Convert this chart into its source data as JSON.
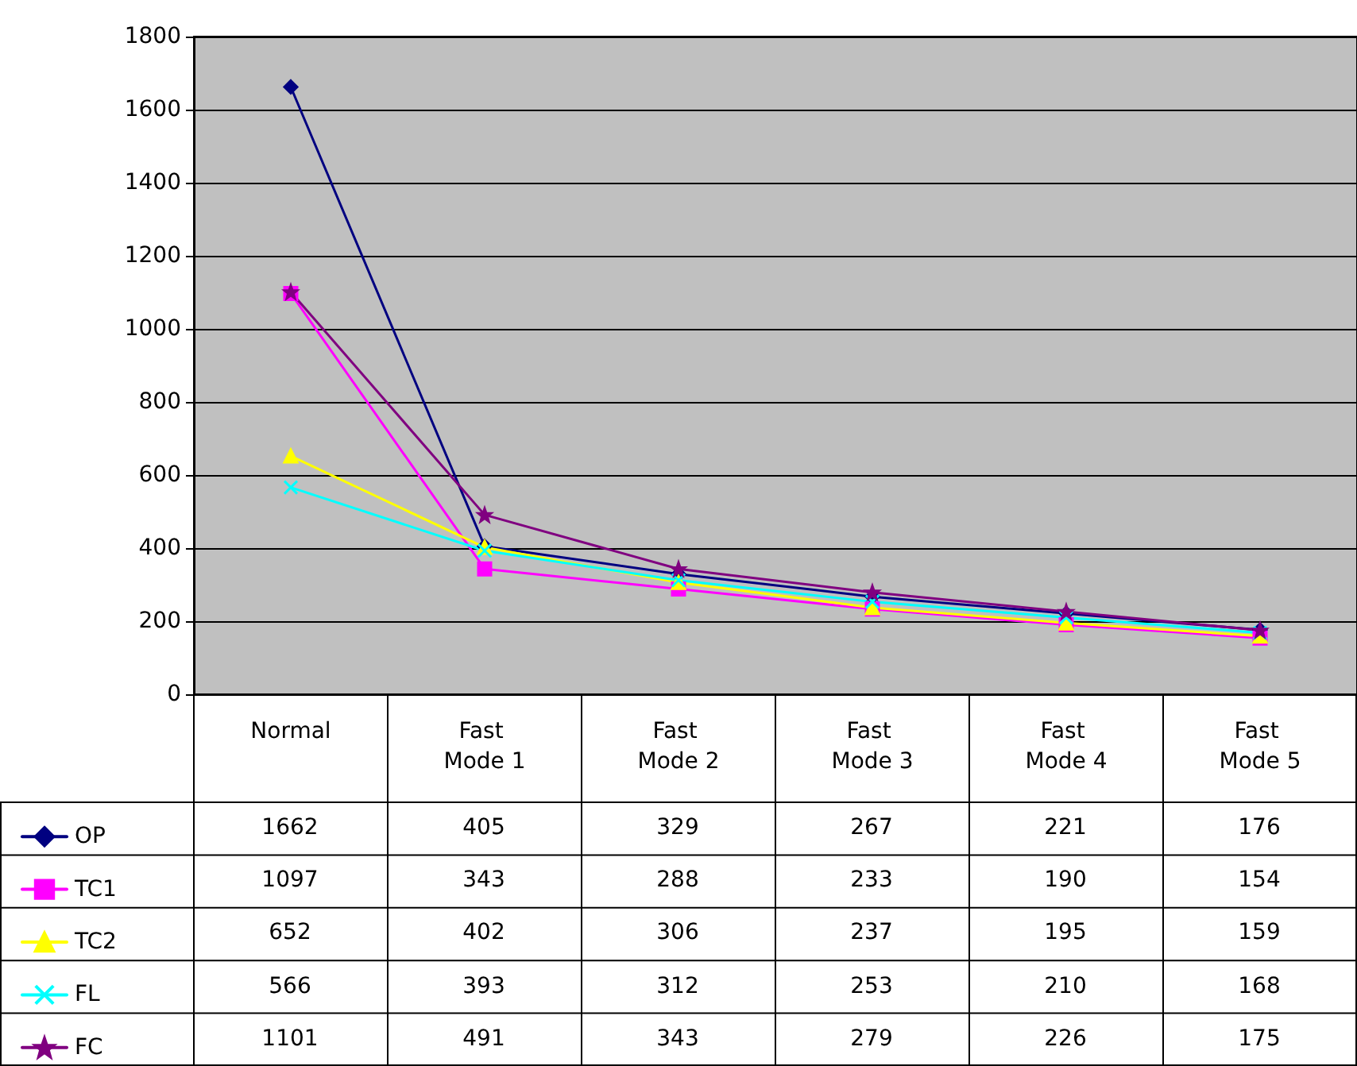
{
  "chart_data": {
    "type": "line",
    "categories": [
      "Normal",
      "Fast Mode 1",
      "Fast Mode 2",
      "Fast Mode 3",
      "Fast Mode 4",
      "Fast Mode 5"
    ],
    "series": [
      {
        "name": "OP",
        "color": "#000080",
        "marker": "diamond",
        "values": [
          1662,
          405,
          329,
          267,
          221,
          176
        ]
      },
      {
        "name": "TC1",
        "color": "#ff00ff",
        "marker": "square",
        "values": [
          1097,
          343,
          288,
          233,
          190,
          154
        ]
      },
      {
        "name": "TC2",
        "color": "#ffff00",
        "marker": "triangle",
        "values": [
          652,
          402,
          306,
          237,
          195,
          159
        ]
      },
      {
        "name": "FL",
        "color": "#00ffff",
        "marker": "cross",
        "values": [
          566,
          393,
          312,
          253,
          210,
          168
        ]
      },
      {
        "name": "FC",
        "color": "#800080",
        "marker": "star",
        "values": [
          1101,
          491,
          343,
          279,
          226,
          175
        ]
      }
    ],
    "ylim": [
      0,
      1800
    ],
    "yticks": [
      0,
      200,
      400,
      600,
      800,
      1000,
      1200,
      1400,
      1600,
      1800
    ],
    "grid": "y",
    "legend": "bottom left",
    "line_style": "solid",
    "data_labels": true
  }
}
